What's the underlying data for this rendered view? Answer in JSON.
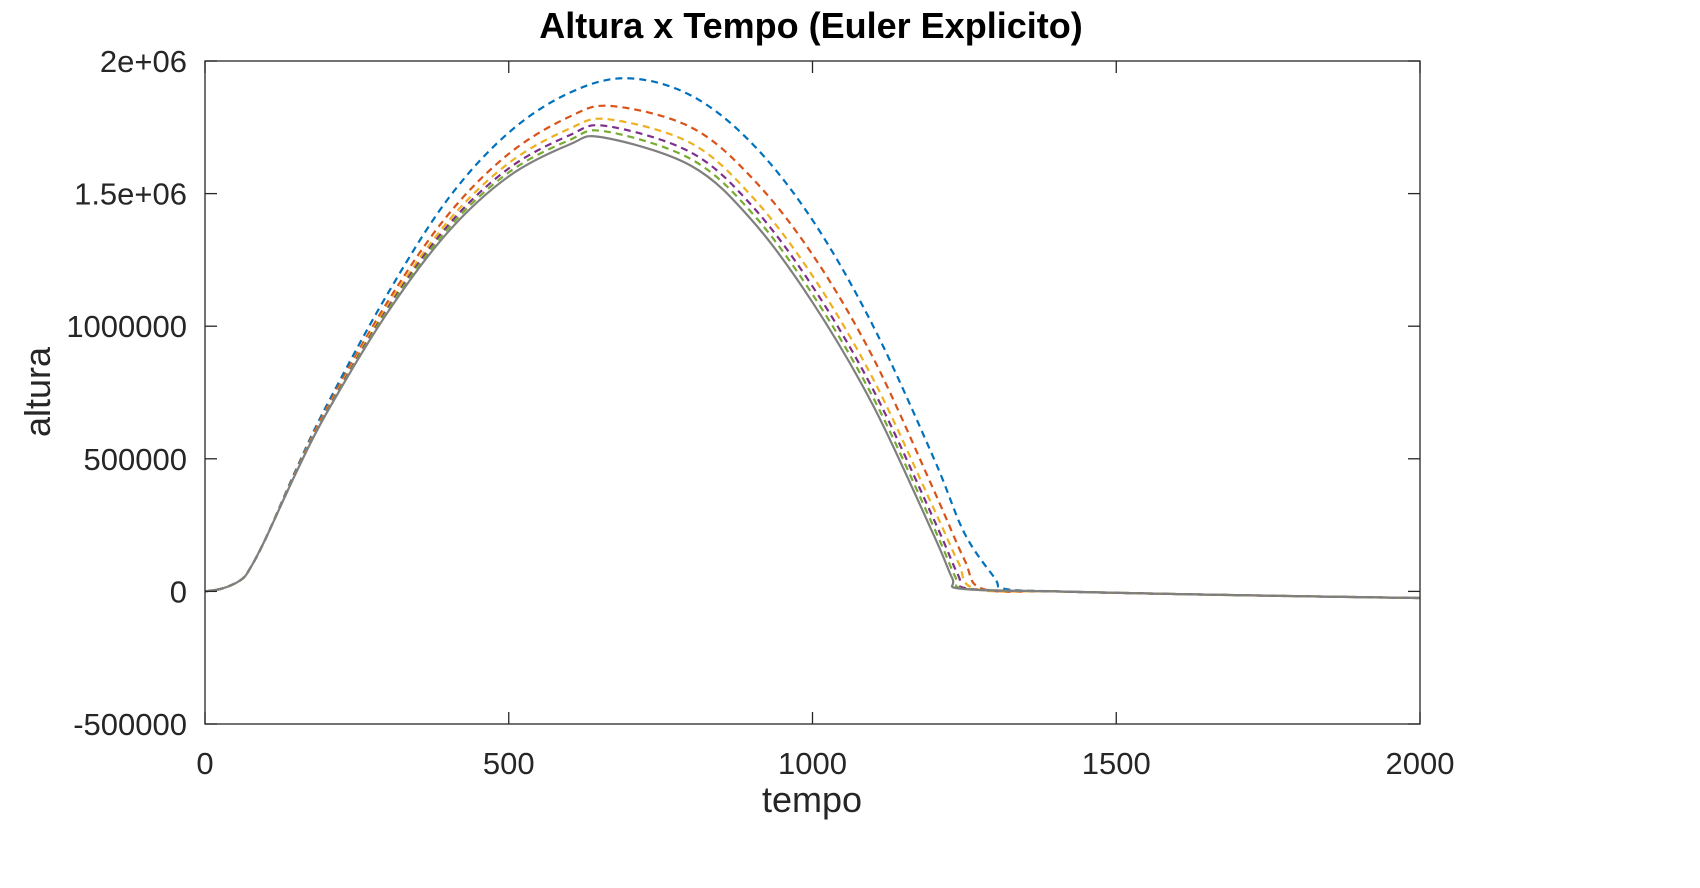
{
  "chart_data": {
    "type": "line",
    "title": "Altura x Tempo (Euler Explicito)",
    "xlabel": "tempo",
    "ylabel": "altura",
    "xlim": [
      0,
      2000
    ],
    "ylim": [
      -500000,
      2000000
    ],
    "xticks": [
      0,
      500,
      1000,
      1500,
      2000
    ],
    "xtick_labels": [
      "0",
      "500",
      "1000",
      "1500",
      "2000"
    ],
    "yticks": [
      -500000,
      0,
      500000,
      1000000,
      1500000,
      2000000
    ],
    "ytick_labels": [
      "-500000",
      "0",
      "500000",
      "1000000",
      "1.5e+06",
      "2e+06"
    ],
    "grid": false,
    "series": [
      {
        "color": "#0072BD",
        "dash": "dashed",
        "x": [
          0,
          30,
          60,
          75,
          100,
          150,
          200,
          300,
          400,
          500,
          600,
          695,
          800,
          900,
          1000,
          1100,
          1200,
          1250,
          1300,
          1315,
          1400,
          1600,
          1800,
          2000
        ],
        "y": [
          0,
          12000,
          45000,
          90000,
          200000,
          460000,
          700000,
          1120000,
          1480000,
          1730000,
          1880000,
          1935000,
          1870000,
          1690000,
          1400000,
          1000000,
          500000,
          220000,
          50000,
          10000,
          0,
          -10000,
          -18000,
          -25000
        ]
      },
      {
        "color": "#D95319",
        "dash": "dashed",
        "x": [
          0,
          30,
          60,
          75,
          100,
          150,
          200,
          300,
          400,
          500,
          600,
          670,
          800,
          900,
          1000,
          1100,
          1200,
          1250,
          1280,
          1400,
          1600,
          1800,
          2000
        ],
        "y": [
          0,
          12000,
          45000,
          90000,
          200000,
          455000,
          690000,
          1090000,
          1420000,
          1650000,
          1790000,
          1830000,
          1750000,
          1560000,
          1270000,
          880000,
          380000,
          120000,
          10000,
          0,
          -10000,
          -18000,
          -25000
        ]
      },
      {
        "color": "#EDB120",
        "dash": "dashed",
        "x": [
          0,
          30,
          60,
          75,
          100,
          150,
          200,
          300,
          400,
          500,
          600,
          665,
          800,
          900,
          1000,
          1100,
          1200,
          1240,
          1268,
          1400,
          1600,
          1800,
          2000
        ],
        "y": [
          0,
          12000,
          45000,
          90000,
          200000,
          452000,
          682000,
          1075000,
          1395000,
          1615000,
          1745000,
          1780000,
          1690000,
          1490000,
          1190000,
          800000,
          310000,
          110000,
          10000,
          0,
          -10000,
          -18000,
          -25000
        ]
      },
      {
        "color": "#7E2F8E",
        "dash": "dashed",
        "x": [
          0,
          30,
          60,
          75,
          100,
          150,
          200,
          300,
          400,
          500,
          600,
          660,
          800,
          900,
          1000,
          1100,
          1200,
          1240,
          1258,
          1400,
          1600,
          1800,
          2000
        ],
        "y": [
          0,
          12000,
          45000,
          90000,
          200000,
          450000,
          678000,
          1065000,
          1380000,
          1595000,
          1720000,
          1755000,
          1655000,
          1455000,
          1150000,
          760000,
          270000,
          60000,
          10000,
          0,
          -10000,
          -18000,
          -25000
        ]
      },
      {
        "color": "#77AC30",
        "dash": "dashed",
        "x": [
          0,
          30,
          60,
          75,
          100,
          150,
          200,
          300,
          400,
          500,
          600,
          658,
          800,
          900,
          1000,
          1100,
          1200,
          1235,
          1252,
          1400,
          1600,
          1800,
          2000
        ],
        "y": [
          0,
          12000,
          45000,
          90000,
          200000,
          449000,
          675000,
          1058000,
          1368000,
          1580000,
          1702000,
          1735000,
          1630000,
          1428000,
          1120000,
          730000,
          240000,
          55000,
          10000,
          0,
          -10000,
          -18000,
          -25000
        ]
      },
      {
        "color": "#7F7F7F",
        "dash": "solid",
        "x": [
          0,
          30,
          60,
          75,
          100,
          150,
          200,
          300,
          400,
          500,
          600,
          655,
          800,
          900,
          1000,
          1100,
          1200,
          1230,
          1245,
          1400,
          1600,
          1800,
          2000
        ],
        "y": [
          0,
          12000,
          45000,
          90000,
          200000,
          448000,
          672000,
          1050000,
          1355000,
          1565000,
          1685000,
          1712000,
          1605000,
          1400000,
          1090000,
          700000,
          210000,
          50000,
          10000,
          0,
          -10000,
          -18000,
          -25000
        ]
      }
    ]
  }
}
